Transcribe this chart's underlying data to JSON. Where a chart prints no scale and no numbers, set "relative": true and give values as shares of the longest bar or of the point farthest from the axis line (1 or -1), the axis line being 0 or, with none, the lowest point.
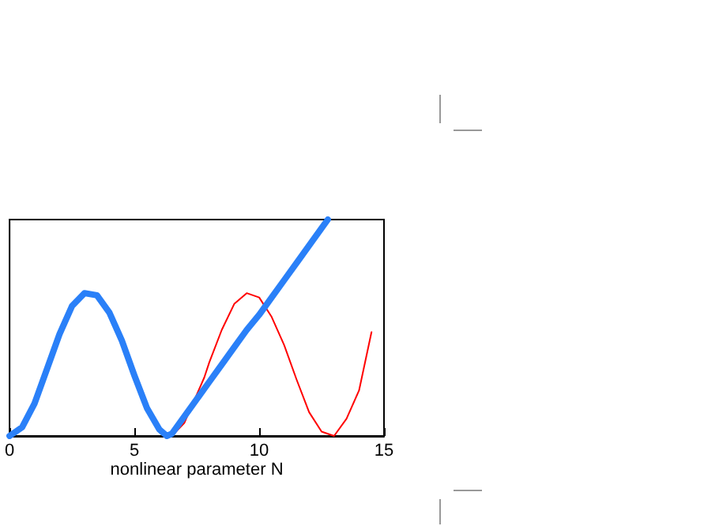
{
  "chart_data": {
    "type": "line",
    "xlabel": "nonlinear parameter N",
    "relative": true,
    "xlim": [
      0,
      15
    ],
    "xticks": [
      0,
      5,
      10,
      15
    ],
    "grid": false,
    "marker": "none",
    "line_style": "solid",
    "series": [
      {
        "color": "#ff0000",
        "x": [
          6.5,
          7,
          7.8,
          8,
          8.5,
          9,
          9.5,
          10,
          10.5,
          11,
          11.5,
          12,
          12.5,
          13,
          13.5,
          14,
          14.5
        ],
        "values": [
          0,
          0.06,
          0.27,
          0.34,
          0.49,
          0.61,
          0.66,
          0.64,
          0.55,
          0.42,
          0.26,
          0.11,
          0.02,
          0,
          0.08,
          0.21,
          0.48
        ]
      },
      {
        "color": "#2a80f8",
        "x": [
          0,
          0.5,
          1,
          1.5,
          2,
          2.5,
          3,
          3.5,
          4,
          4.5,
          5,
          5.5,
          6,
          6.3,
          6.5,
          7,
          7.5,
          8,
          8.5,
          9,
          9.5,
          10,
          10.5,
          11,
          11.5,
          12,
          12.5,
          12.75
        ],
        "values": [
          0,
          0.04,
          0.15,
          0.31,
          0.47,
          0.6,
          0.66,
          0.65,
          0.57,
          0.44,
          0.28,
          0.13,
          0.03,
          0,
          0.01,
          0.09,
          0.17,
          0.25,
          0.33,
          0.41,
          0.49,
          0.56,
          0.64,
          0.72,
          0.8,
          0.88,
          0.96,
          1
        ]
      }
    ]
  }
}
